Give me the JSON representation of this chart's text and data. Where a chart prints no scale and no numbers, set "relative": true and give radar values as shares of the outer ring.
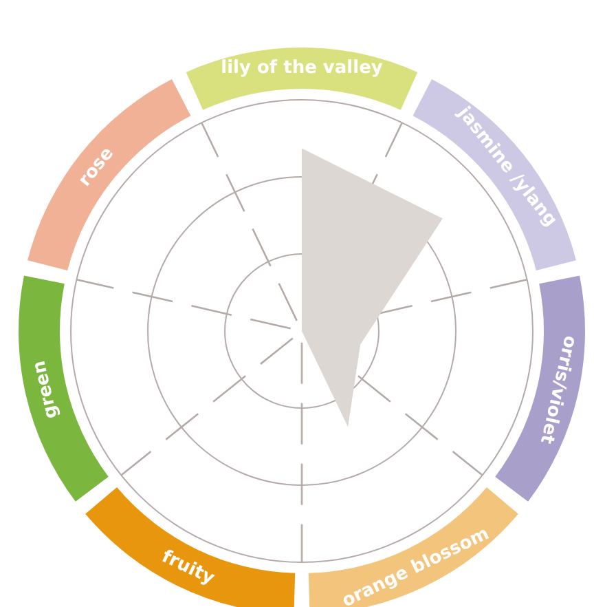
{
  "chart_data": {
    "type": "radar",
    "relative": true,
    "grid": true,
    "categories": [
      "lily of the valley",
      "jasmine /ylang",
      "orris/violet",
      "orange blossom",
      "fruity",
      "green",
      "rose"
    ],
    "colors": [
      "#d9e07e",
      "#cdc8e4",
      "#a89fcb",
      "#f3c47c",
      "#e9960f",
      "#7bb63e",
      "#f1b197"
    ],
    "series": [
      {
        "color": "#ddd7d4",
        "values": [
          0.79,
          0.78,
          0.26,
          0.46,
          0,
          0,
          0
        ]
      }
    ]
  }
}
